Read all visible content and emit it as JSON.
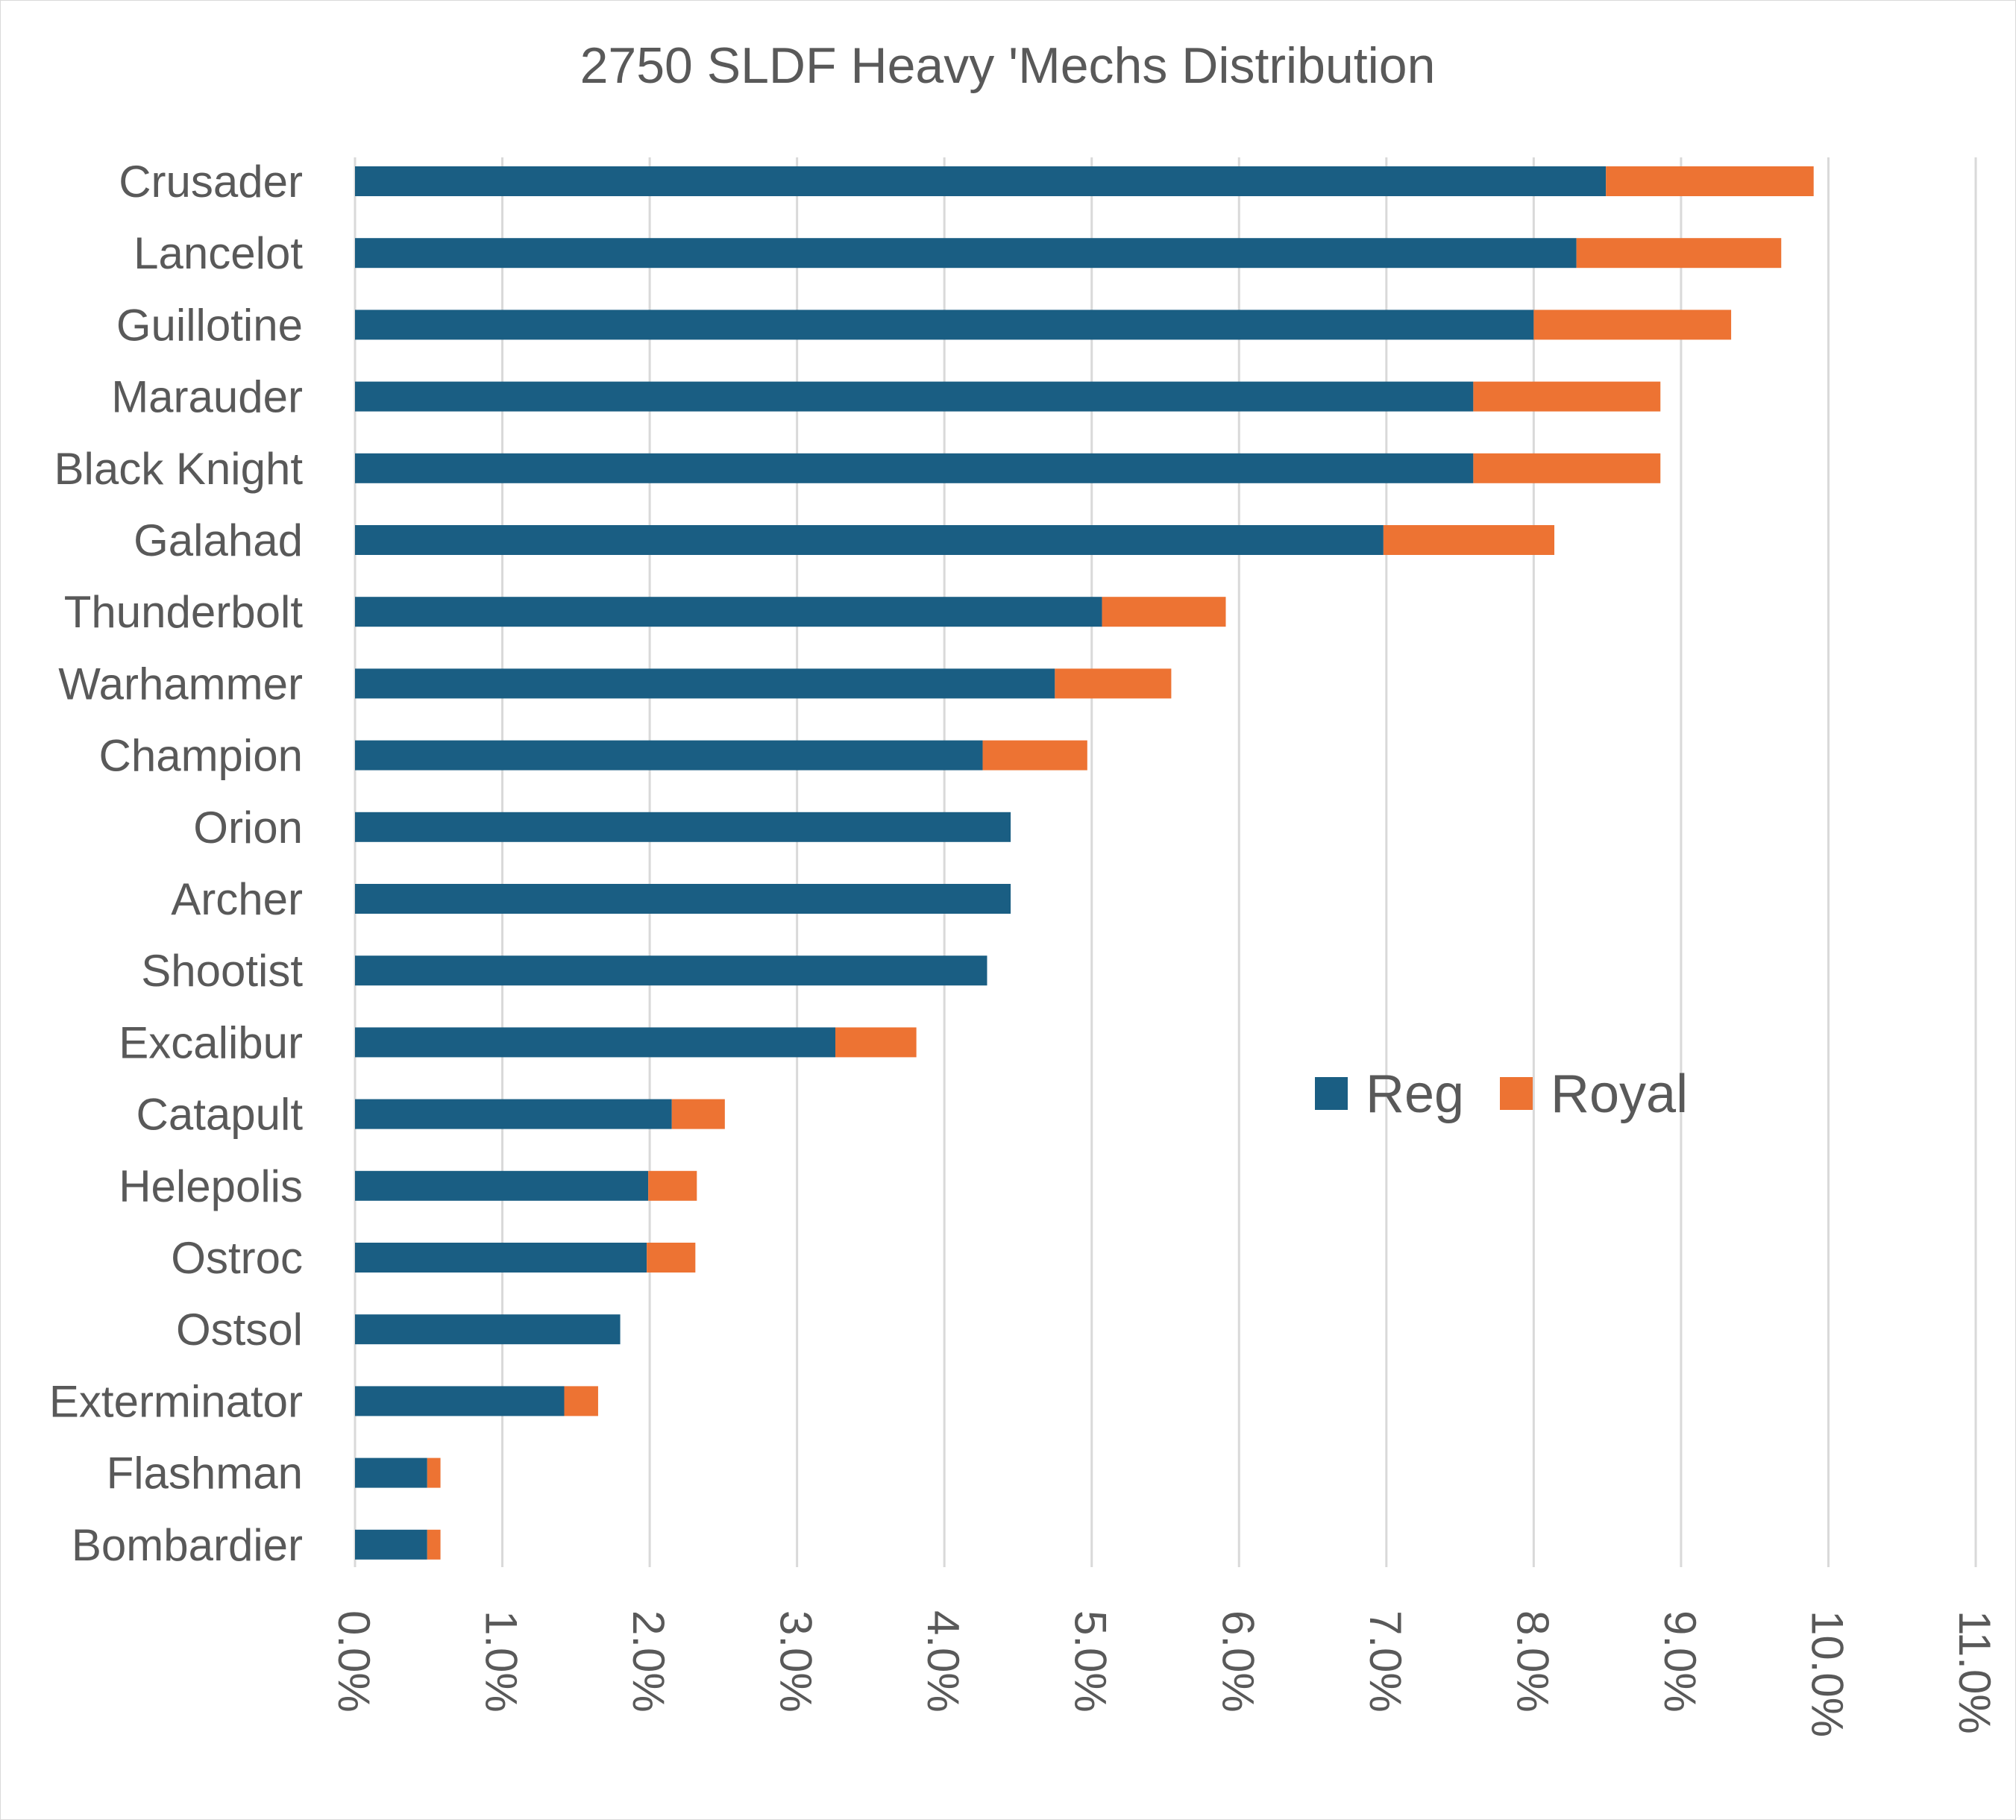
{
  "chart_data": {
    "type": "bar",
    "orientation": "horizontal",
    "stacked": true,
    "title": "2750 SLDF Heavy 'Mechs Distribution",
    "xlabel": "",
    "ylabel": "",
    "xlim": [
      0,
      11
    ],
    "x_ticks": [
      "0.0%",
      "1.0%",
      "2.0%",
      "3.0%",
      "4.0%",
      "5.0%",
      "6.0%",
      "7.0%",
      "8.0%",
      "9.0%",
      "10.0%",
      "11.0%"
    ],
    "grid": true,
    "legend_position": "center-right",
    "categories": [
      "Crusader",
      "Lancelot",
      "Guillotine",
      "Marauder",
      "Black Knight",
      "Galahad",
      "Thunderbolt",
      "Warhammer",
      "Champion",
      "Orion",
      "Archer",
      "Shootist",
      "Excalibur",
      "Catapult",
      "Helepolis",
      "Ostroc",
      "Ostsol",
      "Exterminator",
      "Flashman",
      "Bombardier"
    ],
    "series": [
      {
        "name": "Reg",
        "color": "#1a5e83",
        "values": [
          8.49,
          8.29,
          8.0,
          7.59,
          7.59,
          6.98,
          5.07,
          4.75,
          4.26,
          4.45,
          4.45,
          4.29,
          3.26,
          2.15,
          1.99,
          1.98,
          1.8,
          1.42,
          0.49,
          0.49
        ]
      },
      {
        "name": "Royal",
        "color": "#ed7333",
        "values": [
          1.41,
          1.39,
          1.34,
          1.27,
          1.27,
          1.16,
          0.84,
          0.79,
          0.71,
          0.0,
          0.0,
          0.0,
          0.55,
          0.36,
          0.33,
          0.33,
          0.0,
          0.23,
          0.09,
          0.09
        ]
      }
    ]
  }
}
